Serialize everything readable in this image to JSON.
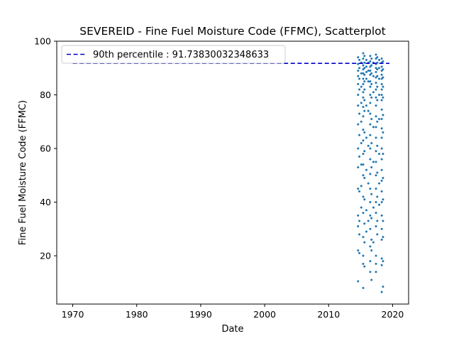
{
  "chart_data": {
    "type": "scatter",
    "title": "SEVEREID - Fine Fuel Moisture Code (FFMC), Scatterplot",
    "xlabel": "Date",
    "ylabel": "Fine Fuel Moisture Code (FFMC)",
    "xlim": [
      1967.5,
      2022.5
    ],
    "ylim": [
      2,
      100
    ],
    "x_ticks": [
      "1970",
      "1980",
      "1990",
      "2000",
      "2010",
      "2020"
    ],
    "y_ticks": [
      "20",
      "40",
      "60",
      "80",
      "100"
    ],
    "grid": false,
    "legend_position": "top-left",
    "reference_line": {
      "label": "90th percentile : 91.73830032348633",
      "value": 91.73830032348633,
      "x_range": [
        1970,
        2019.5
      ],
      "color": "#0000cc",
      "style": "dashed"
    },
    "series": [
      {
        "color": "#1f77b4",
        "points": [
          [
            2014.6,
            94
          ],
          [
            2014.6,
            91.5
          ],
          [
            2014.6,
            89
          ],
          [
            2014.6,
            87
          ],
          [
            2014.6,
            84
          ],
          [
            2014.6,
            80
          ],
          [
            2014.6,
            76
          ],
          [
            2014.6,
            69
          ],
          [
            2014.6,
            60
          ],
          [
            2014.6,
            53
          ],
          [
            2014.6,
            45
          ],
          [
            2014.6,
            35
          ],
          [
            2014.6,
            31
          ],
          [
            2014.6,
            22
          ],
          [
            2014.6,
            10.5
          ],
          [
            2014.8,
            93
          ],
          [
            2014.8,
            90
          ],
          [
            2014.8,
            86
          ],
          [
            2014.8,
            82
          ],
          [
            2014.8,
            73
          ],
          [
            2014.8,
            65
          ],
          [
            2014.8,
            57
          ],
          [
            2014.8,
            44
          ],
          [
            2014.8,
            33
          ],
          [
            2014.8,
            28
          ],
          [
            2014.8,
            21
          ],
          [
            2015.1,
            92
          ],
          [
            2015.1,
            88
          ],
          [
            2015.1,
            83
          ],
          [
            2015.1,
            77
          ],
          [
            2015.1,
            70
          ],
          [
            2015.1,
            62
          ],
          [
            2015.1,
            54
          ],
          [
            2015.1,
            46
          ],
          [
            2015.1,
            38
          ],
          [
            2015.4,
            95.5
          ],
          [
            2015.4,
            93.5
          ],
          [
            2015.4,
            91
          ],
          [
            2015.4,
            89.5
          ],
          [
            2015.4,
            88
          ],
          [
            2015.4,
            86
          ],
          [
            2015.4,
            84
          ],
          [
            2015.4,
            81
          ],
          [
            2015.4,
            79
          ],
          [
            2015.4,
            75.5
          ],
          [
            2015.4,
            72
          ],
          [
            2015.4,
            67
          ],
          [
            2015.4,
            63
          ],
          [
            2015.4,
            58
          ],
          [
            2015.4,
            54
          ],
          [
            2015.4,
            50
          ],
          [
            2015.4,
            42
          ],
          [
            2015.4,
            36
          ],
          [
            2015.4,
            27
          ],
          [
            2015.4,
            20
          ],
          [
            2015.4,
            17
          ],
          [
            2015.4,
            8
          ],
          [
            2015.6,
            94.5
          ],
          [
            2015.6,
            92
          ],
          [
            2015.6,
            90
          ],
          [
            2015.6,
            87.5
          ],
          [
            2015.6,
            85
          ],
          [
            2015.6,
            82
          ],
          [
            2015.6,
            78
          ],
          [
            2015.6,
            74
          ],
          [
            2015.6,
            66
          ],
          [
            2015.6,
            59
          ],
          [
            2015.6,
            49
          ],
          [
            2015.6,
            41
          ],
          [
            2015.6,
            32
          ],
          [
            2015.6,
            25
          ],
          [
            2015.6,
            16
          ],
          [
            2015.9,
            93
          ],
          [
            2015.9,
            90.5
          ],
          [
            2015.9,
            88.5
          ],
          [
            2015.9,
            86
          ],
          [
            2015.9,
            76
          ],
          [
            2015.9,
            64
          ],
          [
            2015.9,
            52
          ],
          [
            2015.9,
            37
          ],
          [
            2015.9,
            29
          ],
          [
            2016.2,
            92
          ],
          [
            2016.2,
            89
          ],
          [
            2016.2,
            85
          ],
          [
            2016.2,
            74
          ],
          [
            2016.2,
            61
          ],
          [
            2016.2,
            47
          ],
          [
            2016.2,
            33
          ],
          [
            2016.5,
            94.5
          ],
          [
            2016.5,
            92.5
          ],
          [
            2016.5,
            90.5
          ],
          [
            2016.5,
            89
          ],
          [
            2016.5,
            87.5
          ],
          [
            2016.5,
            85
          ],
          [
            2016.5,
            83
          ],
          [
            2016.5,
            80
          ],
          [
            2016.5,
            77
          ],
          [
            2016.5,
            73
          ],
          [
            2016.5,
            69
          ],
          [
            2016.5,
            65
          ],
          [
            2016.5,
            60
          ],
          [
            2016.5,
            56
          ],
          [
            2016.5,
            50.5
          ],
          [
            2016.5,
            45
          ],
          [
            2016.5,
            40
          ],
          [
            2016.5,
            35
          ],
          [
            2016.5,
            30
          ],
          [
            2016.5,
            23.5
          ],
          [
            2016.5,
            18
          ],
          [
            2016.5,
            14
          ],
          [
            2016.7,
            93.5
          ],
          [
            2016.7,
            91
          ],
          [
            2016.7,
            88
          ],
          [
            2016.7,
            84
          ],
          [
            2016.7,
            79
          ],
          [
            2016.7,
            71
          ],
          [
            2016.7,
            62
          ],
          [
            2016.7,
            53
          ],
          [
            2016.7,
            43
          ],
          [
            2016.7,
            34
          ],
          [
            2016.7,
            26
          ],
          [
            2016.7,
            22
          ],
          [
            2016.7,
            11
          ],
          [
            2017.0,
            92
          ],
          [
            2017.0,
            87
          ],
          [
            2017.0,
            81
          ],
          [
            2017.0,
            68
          ],
          [
            2017.0,
            55
          ],
          [
            2017.0,
            38
          ],
          [
            2017.0,
            25
          ],
          [
            2017.4,
            95
          ],
          [
            2017.4,
            93.5
          ],
          [
            2017.4,
            91.5
          ],
          [
            2017.4,
            90
          ],
          [
            2017.4,
            88.5
          ],
          [
            2017.4,
            86.5
          ],
          [
            2017.4,
            84.5
          ],
          [
            2017.4,
            82
          ],
          [
            2017.4,
            79
          ],
          [
            2017.4,
            76
          ],
          [
            2017.4,
            72
          ],
          [
            2017.4,
            68
          ],
          [
            2017.4,
            64
          ],
          [
            2017.4,
            59
          ],
          [
            2017.4,
            55
          ],
          [
            2017.4,
            50
          ],
          [
            2017.4,
            45
          ],
          [
            2017.4,
            40
          ],
          [
            2017.4,
            36
          ],
          [
            2017.4,
            31
          ],
          [
            2017.4,
            20
          ],
          [
            2017.4,
            17
          ],
          [
            2017.4,
            14
          ],
          [
            2017.6,
            94
          ],
          [
            2017.6,
            92
          ],
          [
            2017.6,
            89.5
          ],
          [
            2017.6,
            87
          ],
          [
            2017.6,
            83
          ],
          [
            2017.6,
            78
          ],
          [
            2017.6,
            70
          ],
          [
            2017.6,
            61
          ],
          [
            2017.6,
            51
          ],
          [
            2017.6,
            42
          ],
          [
            2017.6,
            33
          ],
          [
            2017.6,
            28
          ],
          [
            2017.9,
            93
          ],
          [
            2017.9,
            90
          ],
          [
            2017.9,
            86
          ],
          [
            2017.9,
            80
          ],
          [
            2017.9,
            71
          ],
          [
            2017.9,
            58
          ],
          [
            2017.9,
            47
          ],
          [
            2017.9,
            39
          ],
          [
            2018.3,
            93.5
          ],
          [
            2018.3,
            92
          ],
          [
            2018.3,
            90.5
          ],
          [
            2018.3,
            89
          ],
          [
            2018.3,
            87.5
          ],
          [
            2018.3,
            86
          ],
          [
            2018.3,
            84
          ],
          [
            2018.3,
            82
          ],
          [
            2018.3,
            80
          ],
          [
            2018.3,
            78
          ],
          [
            2018.3,
            74.5
          ],
          [
            2018.3,
            71
          ],
          [
            2018.3,
            67.5
          ],
          [
            2018.3,
            64
          ],
          [
            2018.3,
            60
          ],
          [
            2018.3,
            56
          ],
          [
            2018.3,
            52
          ],
          [
            2018.3,
            48
          ],
          [
            2018.3,
            44
          ],
          [
            2018.3,
            40
          ],
          [
            2018.3,
            35
          ],
          [
            2018.3,
            30
          ],
          [
            2018.3,
            26
          ],
          [
            2018.3,
            19
          ],
          [
            2018.3,
            16.5
          ],
          [
            2018.3,
            6.5
          ],
          [
            2018.5,
            92.5
          ],
          [
            2018.5,
            89.5
          ],
          [
            2018.5,
            86.5
          ],
          [
            2018.5,
            83
          ],
          [
            2018.5,
            79
          ],
          [
            2018.5,
            72.5
          ],
          [
            2018.5,
            66
          ],
          [
            2018.5,
            58
          ],
          [
            2018.5,
            49
          ],
          [
            2018.5,
            41
          ],
          [
            2018.5,
            33
          ],
          [
            2018.5,
            27
          ],
          [
            2018.5,
            18
          ],
          [
            2018.5,
            8.5
          ]
        ]
      }
    ]
  }
}
